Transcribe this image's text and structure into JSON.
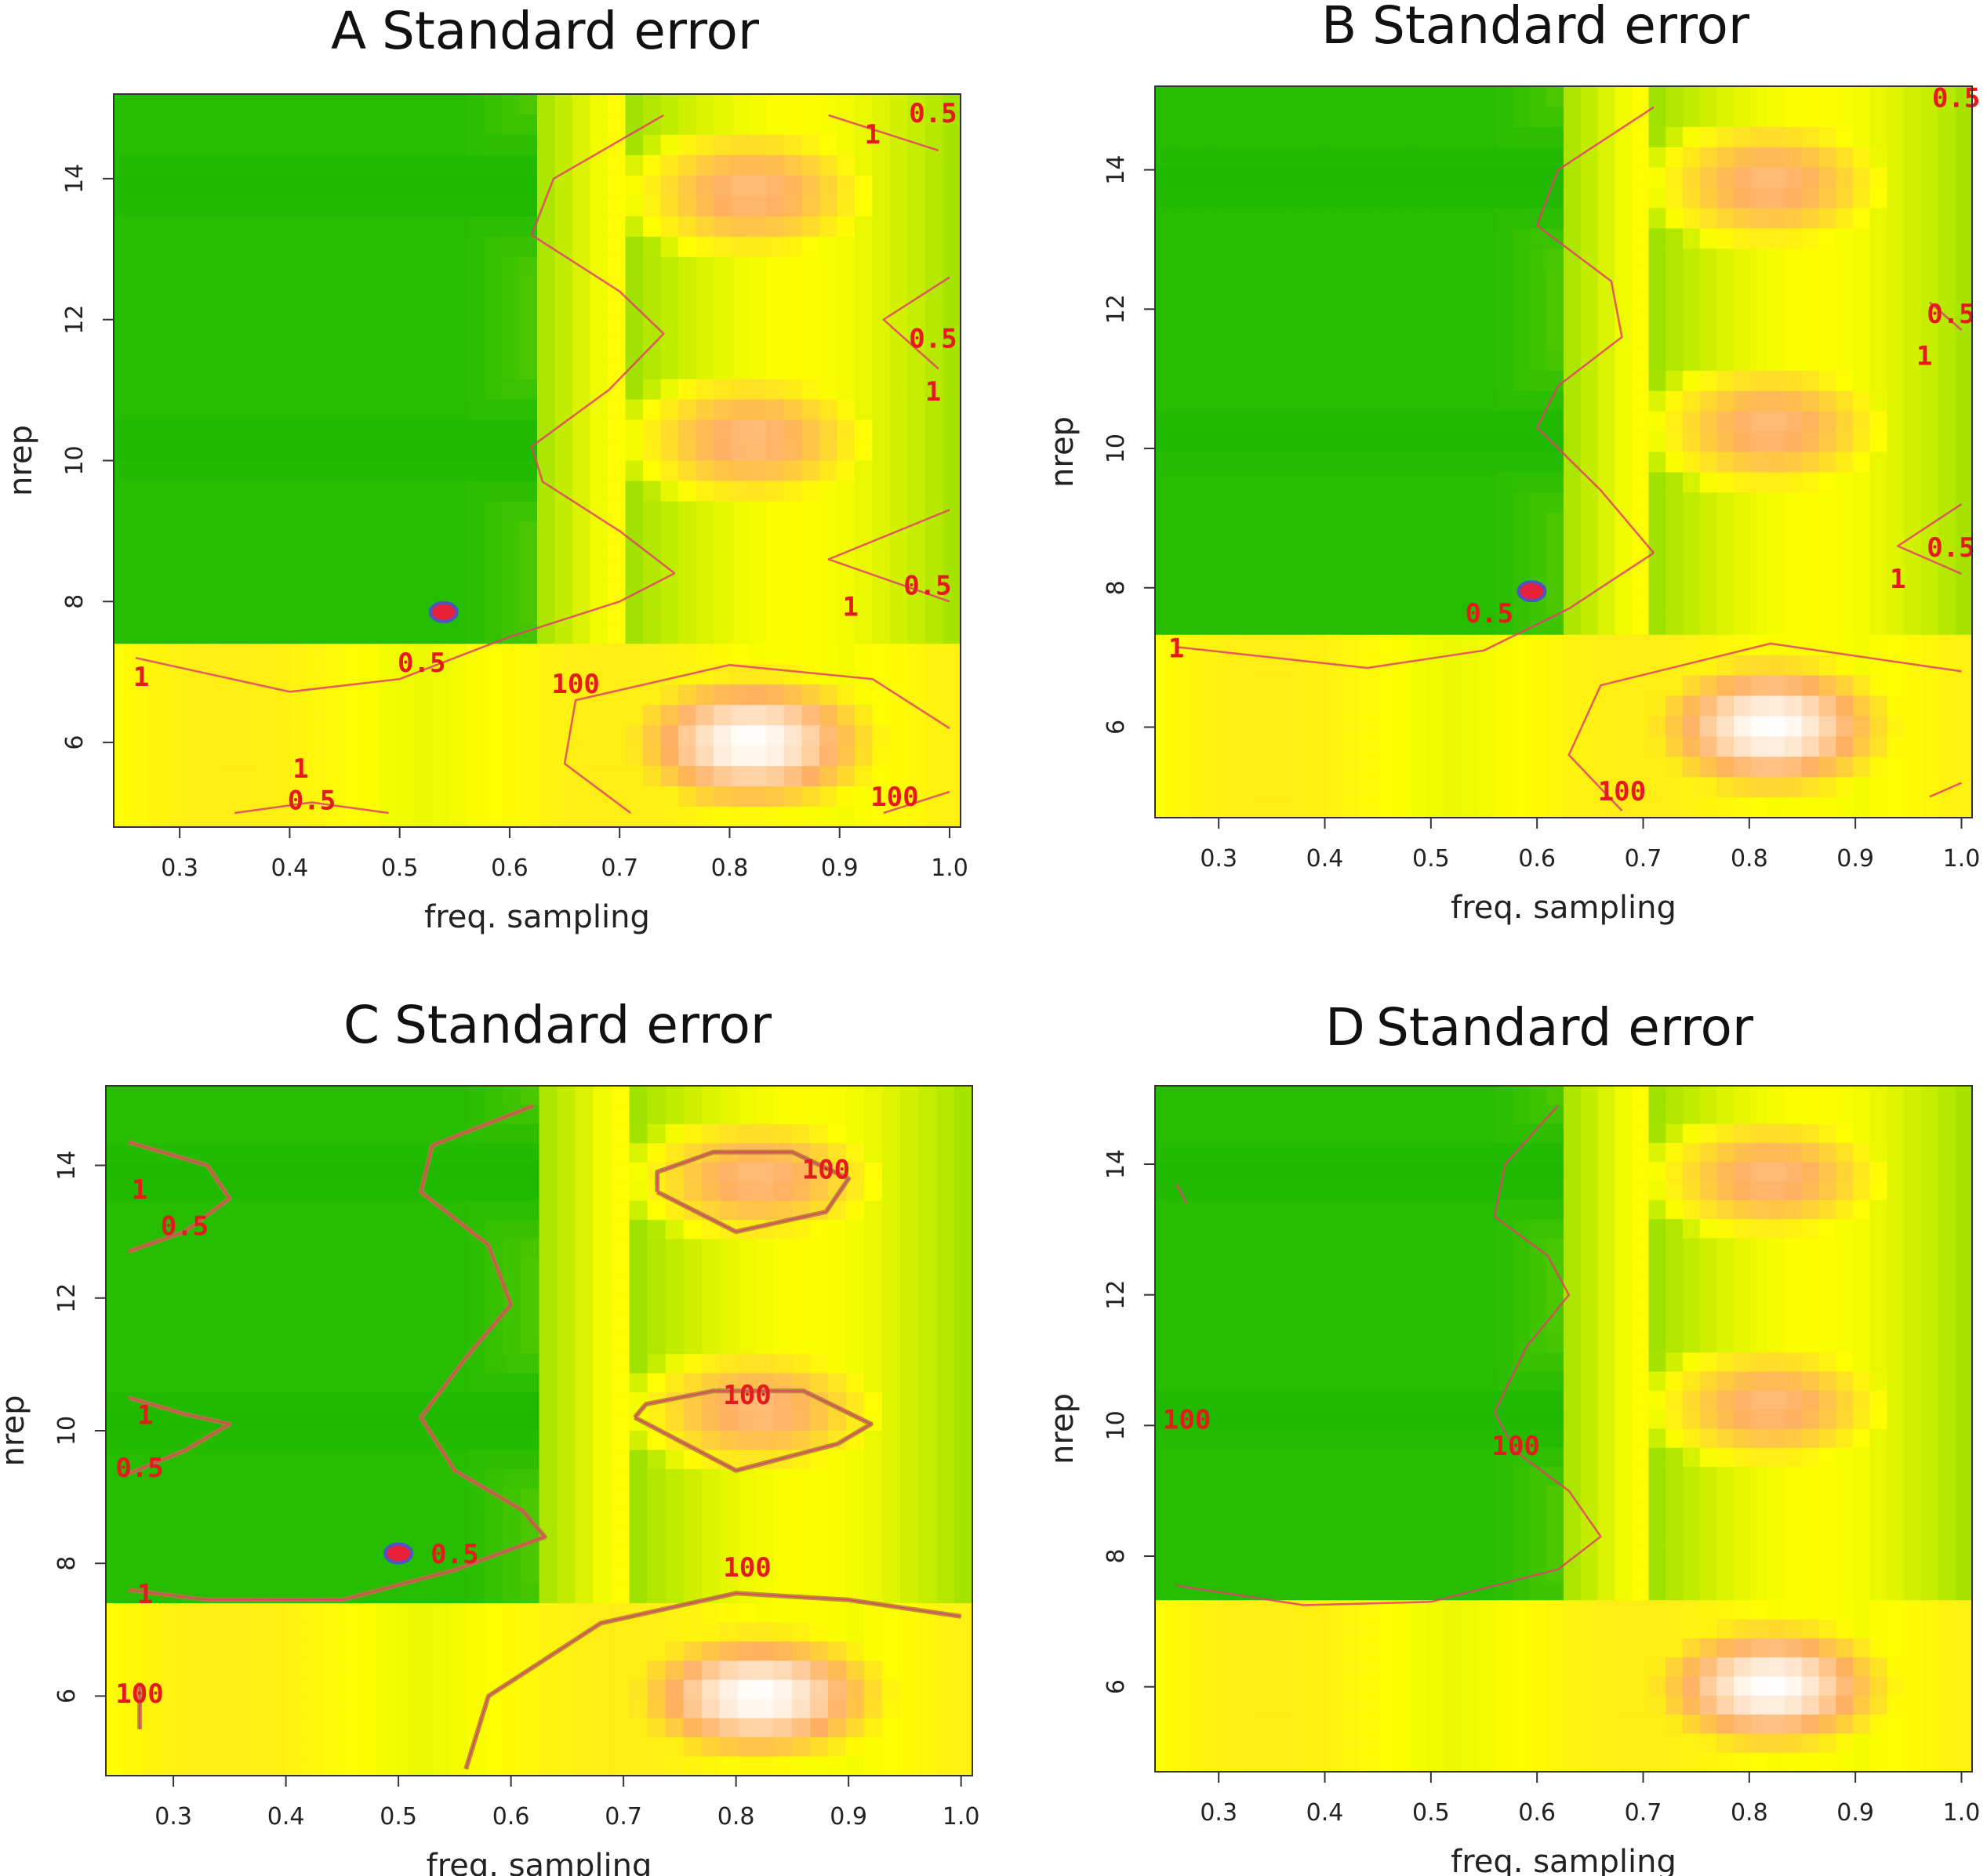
{
  "chart_data": [
    {
      "panel": "A",
      "type": "heatmap",
      "title": "Standard error",
      "xlabel": "freq. sampling",
      "ylabel": "nrep",
      "xlim": [
        0.24,
        1.01
      ],
      "ylim": [
        4.8,
        15.2
      ],
      "xticks": [
        "0.3",
        "0.4",
        "0.5",
        "0.6",
        "0.7",
        "0.8",
        "0.9",
        "1.0"
      ],
      "yticks": [
        "6",
        "8",
        "10",
        "12",
        "14"
      ],
      "grid": false,
      "legend": "none",
      "palette": [
        "#00b000",
        "#ffff00",
        "#ffb060",
        "#ffffff"
      ],
      "hotspots": [
        {
          "x": 0.82,
          "y": 6.0,
          "v": 1.0
        },
        {
          "x": 0.82,
          "y": 10.3,
          "v": 0.72
        },
        {
          "x": 0.82,
          "y": 13.8,
          "v": 0.72
        }
      ],
      "optimum": {
        "x": 0.54,
        "y": 7.85
      },
      "contour_labels": [
        {
          "text": "0.5",
          "x": 0.985,
          "y": 14.8
        },
        {
          "text": "1",
          "x": 0.93,
          "y": 14.5
        },
        {
          "text": "0.5",
          "x": 0.985,
          "y": 11.6
        },
        {
          "text": "1",
          "x": 0.985,
          "y": 10.85
        },
        {
          "text": "0.5",
          "x": 0.98,
          "y": 8.1
        },
        {
          "text": "1",
          "x": 0.91,
          "y": 7.8
        },
        {
          "text": "0.5",
          "x": 0.52,
          "y": 7.0
        },
        {
          "text": "1",
          "x": 0.265,
          "y": 6.8
        },
        {
          "text": "100",
          "x": 0.66,
          "y": 6.7
        },
        {
          "text": "100",
          "x": 0.95,
          "y": 5.1
        },
        {
          "text": "1",
          "x": 0.41,
          "y": 5.5
        },
        {
          "text": "0.5",
          "x": 0.42,
          "y": 5.05
        }
      ],
      "contours": [
        [
          [
            0.74,
            14.9
          ],
          [
            0.64,
            14.0
          ],
          [
            0.62,
            13.2
          ],
          [
            0.7,
            12.4
          ],
          [
            0.74,
            11.8
          ],
          [
            0.69,
            11.0
          ],
          [
            0.62,
            10.2
          ],
          [
            0.63,
            9.7
          ],
          [
            0.7,
            9.0
          ],
          [
            0.75,
            8.4
          ]
        ],
        [
          [
            0.26,
            7.2
          ],
          [
            0.4,
            6.72
          ],
          [
            0.5,
            6.9
          ],
          [
            0.6,
            7.5
          ],
          [
            0.7,
            8.0
          ],
          [
            0.75,
            8.4
          ]
        ],
        [
          [
            0.35,
            5.0
          ],
          [
            0.42,
            5.15
          ],
          [
            0.49,
            5.0
          ]
        ],
        [
          [
            0.89,
            14.9
          ],
          [
            0.99,
            14.4
          ]
        ],
        [
          [
            1.0,
            12.6
          ],
          [
            0.94,
            12.0
          ],
          [
            0.99,
            11.3
          ]
        ],
        [
          [
            1.0,
            9.3
          ],
          [
            0.89,
            8.6
          ],
          [
            1.0,
            8.0
          ]
        ],
        [
          [
            0.71,
            5.0
          ],
          [
            0.65,
            5.7
          ],
          [
            0.66,
            6.6
          ],
          [
            0.8,
            7.1
          ],
          [
            0.93,
            6.9
          ],
          [
            1.0,
            6.2
          ]
        ],
        [
          [
            0.94,
            5.0
          ],
          [
            1.0,
            5.3
          ]
        ]
      ]
    },
    {
      "panel": "B",
      "type": "heatmap",
      "title": "Standard error",
      "xlabel": "freq. sampling",
      "ylabel": "nrep",
      "xlim": [
        0.24,
        1.01
      ],
      "ylim": [
        4.7,
        15.2
      ],
      "xticks": [
        "0.3",
        "0.4",
        "0.5",
        "0.6",
        "0.7",
        "0.8",
        "0.9",
        "1.0"
      ],
      "yticks": [
        "6",
        "8",
        "10",
        "12",
        "14"
      ],
      "grid": false,
      "legend": "none",
      "palette": [
        "#00b000",
        "#ffff00",
        "#ffb060",
        "#ffffff"
      ],
      "hotspots": [
        {
          "x": 0.82,
          "y": 6.0,
          "v": 1.0
        },
        {
          "x": 0.82,
          "y": 10.3,
          "v": 0.72
        },
        {
          "x": 0.82,
          "y": 13.8,
          "v": 0.72
        }
      ],
      "optimum": {
        "x": 0.595,
        "y": 7.95
      },
      "contour_labels": [
        {
          "text": "0.5",
          "x": 0.995,
          "y": 14.9
        },
        {
          "text": "0.5",
          "x": 0.99,
          "y": 11.8
        },
        {
          "text": "1",
          "x": 0.965,
          "y": 11.2
        },
        {
          "text": "0.5",
          "x": 0.99,
          "y": 8.45
        },
        {
          "text": "1",
          "x": 0.94,
          "y": 8.0
        },
        {
          "text": "0.5",
          "x": 0.555,
          "y": 7.5
        },
        {
          "text": "1",
          "x": 0.26,
          "y": 7.0
        },
        {
          "text": "100",
          "x": 0.68,
          "y": 4.95
        }
      ],
      "contours": [
        [
          [
            0.71,
            14.9
          ],
          [
            0.62,
            14.0
          ],
          [
            0.6,
            13.2
          ],
          [
            0.67,
            12.4
          ],
          [
            0.68,
            11.6
          ],
          [
            0.62,
            10.9
          ],
          [
            0.6,
            10.3
          ],
          [
            0.66,
            9.4
          ],
          [
            0.71,
            8.5
          ]
        ],
        [
          [
            0.26,
            7.15
          ],
          [
            0.44,
            6.85
          ],
          [
            0.55,
            7.1
          ],
          [
            0.63,
            7.7
          ],
          [
            0.71,
            8.5
          ]
        ],
        [
          [
            0.97,
            12.1
          ],
          [
            1.0,
            11.7
          ]
        ],
        [
          [
            1.0,
            9.2
          ],
          [
            0.94,
            8.6
          ],
          [
            1.0,
            8.2
          ]
        ],
        [
          [
            0.68,
            4.8
          ],
          [
            0.63,
            5.6
          ],
          [
            0.66,
            6.6
          ],
          [
            0.82,
            7.2
          ],
          [
            1.0,
            6.8
          ]
        ],
        [
          [
            0.97,
            5.0
          ],
          [
            1.0,
            5.2
          ]
        ]
      ]
    },
    {
      "panel": "C",
      "type": "heatmap",
      "title": "Standard error",
      "xlabel": "freq. sampling",
      "ylabel": "nrep",
      "xlim": [
        0.24,
        1.01
      ],
      "ylim": [
        4.8,
        15.2
      ],
      "xticks": [
        "0.3",
        "0.4",
        "0.5",
        "0.6",
        "0.7",
        "0.8",
        "0.9",
        "1.0"
      ],
      "yticks": [
        "6",
        "8",
        "10",
        "12",
        "14"
      ],
      "grid": false,
      "legend": "none",
      "palette": [
        "#00b000",
        "#ffff00",
        "#ffb060",
        "#ffffff"
      ],
      "hotspots": [
        {
          "x": 0.82,
          "y": 6.0,
          "v": 1.0
        },
        {
          "x": 0.82,
          "y": 10.3,
          "v": 0.72
        },
        {
          "x": 0.82,
          "y": 13.8,
          "v": 0.72
        }
      ],
      "optimum": {
        "x": 0.5,
        "y": 8.15
      },
      "contour_labels": [
        {
          "text": "100",
          "x": 0.88,
          "y": 13.8
        },
        {
          "text": "1",
          "x": 0.27,
          "y": 13.5
        },
        {
          "text": "0.5",
          "x": 0.31,
          "y": 12.95
        },
        {
          "text": "100",
          "x": 0.81,
          "y": 10.4
        },
        {
          "text": "1",
          "x": 0.275,
          "y": 10.1
        },
        {
          "text": "0.5",
          "x": 0.27,
          "y": 9.3
        },
        {
          "text": "0.5",
          "x": 0.55,
          "y": 8.0
        },
        {
          "text": "100",
          "x": 0.81,
          "y": 7.8
        },
        {
          "text": "1",
          "x": 0.275,
          "y": 7.4
        },
        {
          "text": "100",
          "x": 0.27,
          "y": 5.9
        }
      ],
      "contours": [
        [
          [
            0.26,
            14.35
          ],
          [
            0.33,
            14.0
          ],
          [
            0.35,
            13.5
          ],
          [
            0.31,
            13.0
          ],
          [
            0.26,
            12.7
          ]
        ],
        [
          [
            0.26,
            10.5
          ],
          [
            0.31,
            10.25
          ],
          [
            0.35,
            10.1
          ],
          [
            0.31,
            9.7
          ],
          [
            0.26,
            9.35
          ]
        ],
        [
          [
            0.62,
            14.9
          ],
          [
            0.53,
            14.3
          ],
          [
            0.52,
            13.6
          ],
          [
            0.58,
            12.8
          ],
          [
            0.6,
            11.9
          ],
          [
            0.56,
            11.1
          ],
          [
            0.52,
            10.2
          ],
          [
            0.55,
            9.4
          ],
          [
            0.61,
            8.8
          ],
          [
            0.63,
            8.4
          ],
          [
            0.55,
            7.9
          ],
          [
            0.45,
            7.45
          ],
          [
            0.33,
            7.45
          ],
          [
            0.26,
            7.6
          ]
        ],
        [
          [
            0.73,
            13.6
          ],
          [
            0.8,
            13.0
          ],
          [
            0.88,
            13.3
          ],
          [
            0.9,
            13.8
          ],
          [
            0.85,
            14.2
          ],
          [
            0.78,
            14.2
          ],
          [
            0.73,
            13.9
          ],
          [
            0.73,
            13.6
          ]
        ],
        [
          [
            0.71,
            10.2
          ],
          [
            0.8,
            9.4
          ],
          [
            0.89,
            9.8
          ],
          [
            0.92,
            10.1
          ],
          [
            0.86,
            10.6
          ],
          [
            0.78,
            10.6
          ],
          [
            0.72,
            10.4
          ],
          [
            0.71,
            10.2
          ]
        ],
        [
          [
            0.56,
            4.9
          ],
          [
            0.58,
            6.0
          ],
          [
            0.68,
            7.1
          ],
          [
            0.8,
            7.55
          ],
          [
            0.9,
            7.45
          ],
          [
            1.0,
            7.2
          ]
        ],
        [
          [
            0.27,
            5.5
          ],
          [
            0.27,
            6.2
          ]
        ]
      ]
    },
    {
      "panel": "D",
      "type": "heatmap",
      "title": "Standard error",
      "xlabel": "freq. sampling",
      "ylabel": "nrep",
      "xlim": [
        0.24,
        1.01
      ],
      "ylim": [
        4.7,
        15.2
      ],
      "xticks": [
        "0.3",
        "0.4",
        "0.5",
        "0.6",
        "0.7",
        "0.8",
        "0.9",
        "1.0"
      ],
      "yticks": [
        "6",
        "8",
        "10",
        "12",
        "14"
      ],
      "grid": false,
      "legend": "none",
      "palette": [
        "#00b000",
        "#ffff00",
        "#ffb060",
        "#ffffff"
      ],
      "hotspots": [
        {
          "x": 0.82,
          "y": 6.0,
          "v": 1.0
        },
        {
          "x": 0.82,
          "y": 10.3,
          "v": 0.72
        },
        {
          "x": 0.82,
          "y": 13.8,
          "v": 0.72
        }
      ],
      "optimum": null,
      "contour_labels": [
        {
          "text": "100",
          "x": 0.27,
          "y": 9.95
        },
        {
          "text": "100",
          "x": 0.58,
          "y": 9.55
        }
      ],
      "contours": [
        [
          [
            0.62,
            14.9
          ],
          [
            0.57,
            14.0
          ],
          [
            0.56,
            13.2
          ],
          [
            0.61,
            12.6
          ],
          [
            0.63,
            12.0
          ],
          [
            0.59,
            11.2
          ],
          [
            0.56,
            10.2
          ],
          [
            0.58,
            9.6
          ],
          [
            0.63,
            9.0
          ],
          [
            0.66,
            8.3
          ],
          [
            0.62,
            7.8
          ],
          [
            0.5,
            7.3
          ],
          [
            0.38,
            7.25
          ],
          [
            0.26,
            7.55
          ]
        ],
        [
          [
            0.26,
            13.7
          ],
          [
            0.27,
            13.4
          ]
        ]
      ]
    }
  ]
}
